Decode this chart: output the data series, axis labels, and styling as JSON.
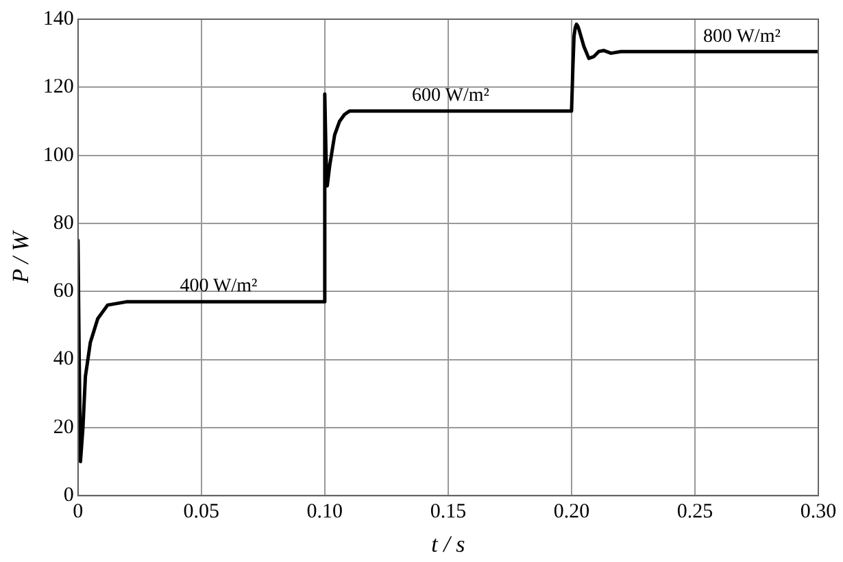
{
  "chart_data": {
    "type": "line",
    "xlabel": "t / s",
    "ylabel": "P / W",
    "x": [
      0,
      0.0005,
      0.001,
      0.002,
      0.003,
      0.005,
      0.008,
      0.012,
      0.02,
      0.1,
      0.1,
      0.1005,
      0.101,
      0.102,
      0.104,
      0.106,
      0.108,
      0.11,
      0.2,
      0.2005,
      0.201,
      0.2015,
      0.202,
      0.2025,
      0.203,
      0.205,
      0.207,
      0.209,
      0.211,
      0.213,
      0.216,
      0.22,
      0.3
    ],
    "series": [
      {
        "color": "#000000",
        "values": [
          75,
          40,
          10,
          20,
          35,
          45,
          52,
          56,
          57,
          57,
          118,
          100,
          91,
          97,
          106,
          110,
          112,
          113,
          113,
          125,
          135,
          137.5,
          138.5,
          138,
          137,
          132,
          128.5,
          129,
          130.5,
          130.8,
          130,
          130.5,
          130.5
        ]
      }
    ],
    "xlim": [
      0,
      0.3
    ],
    "xticks": [
      0,
      0.05,
      {
        "value": 0.1,
        "label": "0.10"
      },
      0.15,
      {
        "value": 0.2,
        "label": "0.20"
      },
      0.25,
      {
        "value": 0.3,
        "label": "0.30"
      }
    ],
    "ylim": [
      0,
      140
    ],
    "yticks": [
      0,
      20,
      40,
      60,
      80,
      100,
      120,
      140
    ],
    "grid": true,
    "legend": false,
    "marker": "none",
    "line_style": "solid",
    "annotations": [
      {
        "text": "400 W/m²",
        "x": 0.057,
        "y": 57
      },
      {
        "text": "600 W/m²",
        "x": 0.151,
        "y": 113
      },
      {
        "text": "800 W/m²",
        "x": 0.269,
        "y": 130.5
      }
    ]
  }
}
